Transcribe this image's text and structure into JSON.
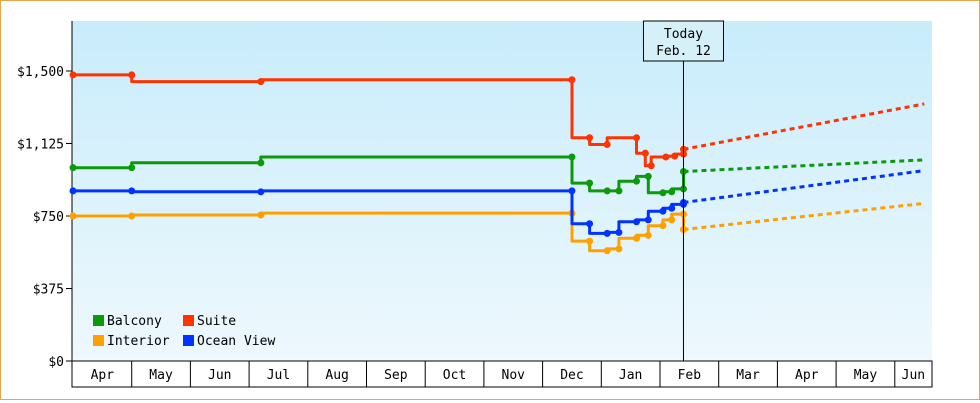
{
  "chart_data": {
    "type": "line",
    "y_ticks": [
      "$1,500",
      "$1,125",
      "$750",
      "$375",
      "$0"
    ],
    "y_tick_values": [
      1500,
      1125,
      750,
      375,
      0
    ],
    "ylim": [
      0,
      1500
    ],
    "grid": false,
    "months": [
      "Apr",
      "May",
      "Jun",
      "Jul",
      "Aug",
      "Sep",
      "Oct",
      "Nov",
      "Dec",
      "Jan",
      "Feb",
      "Mar",
      "Apr",
      "May",
      "Jun"
    ],
    "today_label": [
      "Today",
      "Feb. 12"
    ],
    "legend_position": "bottom-left",
    "series": [
      {
        "name": "Balcony",
        "color": "#0a9a0a",
        "points": [
          [
            0,
            1000
          ],
          [
            1,
            1000
          ],
          [
            1,
            1025
          ],
          [
            3.2,
            1025
          ],
          [
            3.2,
            1055
          ],
          [
            8.5,
            1055
          ],
          [
            8.5,
            920
          ],
          [
            8.8,
            920
          ],
          [
            8.8,
            880
          ],
          [
            9.1,
            880
          ],
          [
            9.1,
            880
          ],
          [
            9.3,
            880
          ],
          [
            9.3,
            930
          ],
          [
            9.6,
            930
          ],
          [
            9.6,
            955
          ],
          [
            9.8,
            955
          ],
          [
            9.8,
            870
          ],
          [
            10.05,
            870
          ],
          [
            10.05,
            875
          ],
          [
            10.2,
            875
          ],
          [
            10.2,
            890
          ],
          [
            10.4,
            890
          ],
          [
            10.4,
            980
          ]
        ],
        "projection": [
          [
            10.4,
            980
          ],
          [
            14.5,
            1040
          ]
        ]
      },
      {
        "name": "Suite",
        "color": "#ff3300",
        "points": [
          [
            0,
            1480
          ],
          [
            1,
            1480
          ],
          [
            1,
            1445
          ],
          [
            3.2,
            1445
          ],
          [
            3.2,
            1455
          ],
          [
            8.5,
            1455
          ],
          [
            8.5,
            1155
          ],
          [
            8.8,
            1155
          ],
          [
            8.8,
            1120
          ],
          [
            9.1,
            1120
          ],
          [
            9.1,
            1155
          ],
          [
            9.6,
            1155
          ],
          [
            9.6,
            1075
          ],
          [
            9.75,
            1075
          ],
          [
            9.75,
            1010
          ],
          [
            9.85,
            1010
          ],
          [
            9.85,
            1055
          ],
          [
            10.1,
            1055
          ],
          [
            10.1,
            1060
          ],
          [
            10.25,
            1060
          ],
          [
            10.25,
            1070
          ],
          [
            10.4,
            1070
          ],
          [
            10.4,
            1095
          ]
        ],
        "projection": [
          [
            10.4,
            1095
          ],
          [
            14.5,
            1330
          ]
        ]
      },
      {
        "name": "Interior",
        "color": "#ffa000",
        "points": [
          [
            0,
            750
          ],
          [
            1,
            750
          ],
          [
            1,
            755
          ],
          [
            3.2,
            755
          ],
          [
            3.2,
            765
          ],
          [
            8.5,
            765
          ],
          [
            8.5,
            620
          ],
          [
            8.8,
            620
          ],
          [
            8.8,
            570
          ],
          [
            9.1,
            570
          ],
          [
            9.1,
            580
          ],
          [
            9.3,
            580
          ],
          [
            9.3,
            635
          ],
          [
            9.6,
            635
          ],
          [
            9.6,
            650
          ],
          [
            9.8,
            650
          ],
          [
            9.8,
            700
          ],
          [
            10.05,
            700
          ],
          [
            10.05,
            730
          ],
          [
            10.2,
            730
          ],
          [
            10.2,
            760
          ],
          [
            10.4,
            760
          ],
          [
            10.4,
            680
          ]
        ],
        "projection": [
          [
            10.4,
            680
          ],
          [
            14.5,
            815
          ]
        ]
      },
      {
        "name": "Ocean View",
        "color": "#0033ff",
        "points": [
          [
            0,
            880
          ],
          [
            1,
            880
          ],
          [
            1,
            875
          ],
          [
            3.2,
            875
          ],
          [
            3.2,
            880
          ],
          [
            8.5,
            880
          ],
          [
            8.5,
            710
          ],
          [
            8.8,
            710
          ],
          [
            8.8,
            660
          ],
          [
            9.1,
            660
          ],
          [
            9.1,
            665
          ],
          [
            9.3,
            665
          ],
          [
            9.3,
            720
          ],
          [
            9.6,
            720
          ],
          [
            9.6,
            730
          ],
          [
            9.8,
            730
          ],
          [
            9.8,
            775
          ],
          [
            10.05,
            775
          ],
          [
            10.05,
            790
          ],
          [
            10.2,
            790
          ],
          [
            10.2,
            810
          ],
          [
            10.4,
            810
          ],
          [
            10.4,
            820
          ]
        ],
        "projection": [
          [
            10.4,
            820
          ],
          [
            14.5,
            985
          ]
        ]
      }
    ]
  }
}
